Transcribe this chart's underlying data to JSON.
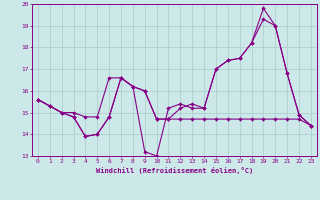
{
  "bg_color": "#cce8e8",
  "grid_color": "#aacccc",
  "line_color": "#880088",
  "xlabel": "Windchill (Refroidissement éolien,°C)",
  "xlim": [
    -0.5,
    23.5
  ],
  "ylim": [
    13,
    20
  ],
  "yticks": [
    13,
    14,
    15,
    16,
    17,
    18,
    19,
    20
  ],
  "xticks": [
    0,
    1,
    2,
    3,
    4,
    5,
    6,
    7,
    8,
    9,
    10,
    11,
    12,
    13,
    14,
    15,
    16,
    17,
    18,
    19,
    20,
    21,
    22,
    23
  ],
  "series1_x": [
    0,
    1,
    2,
    3,
    4,
    5,
    6,
    7,
    8,
    9,
    10,
    11,
    12,
    13,
    14,
    15,
    16,
    17,
    18,
    19,
    20,
    21,
    22,
    23
  ],
  "series1_y": [
    15.6,
    15.3,
    15.0,
    14.8,
    13.9,
    14.0,
    14.8,
    16.6,
    16.2,
    13.2,
    13.0,
    15.2,
    15.4,
    15.2,
    15.2,
    17.0,
    17.4,
    17.5,
    18.2,
    19.8,
    19.0,
    16.8,
    14.9,
    14.4
  ],
  "series2_x": [
    0,
    1,
    2,
    3,
    4,
    5,
    6,
    7,
    8,
    9,
    10,
    11,
    12,
    13,
    14,
    15,
    16,
    17,
    18,
    19,
    20,
    21,
    22,
    23
  ],
  "series2_y": [
    15.6,
    15.3,
    15.0,
    15.0,
    14.8,
    14.8,
    16.6,
    16.6,
    16.2,
    16.0,
    14.7,
    14.7,
    14.7,
    14.7,
    14.7,
    14.7,
    14.7,
    14.7,
    14.7,
    14.7,
    14.7,
    14.7,
    14.7,
    14.4
  ],
  "series3_x": [
    0,
    1,
    2,
    3,
    4,
    5,
    6,
    7,
    8,
    9,
    10,
    11,
    12,
    13,
    14,
    15,
    16,
    17,
    18,
    19,
    20,
    21,
    22,
    23
  ],
  "series3_y": [
    15.6,
    15.3,
    15.0,
    14.8,
    13.9,
    14.0,
    14.8,
    16.6,
    16.2,
    16.0,
    14.7,
    14.7,
    15.2,
    15.4,
    15.2,
    17.0,
    17.4,
    17.5,
    18.2,
    19.3,
    19.0,
    16.8,
    14.9,
    14.4
  ]
}
